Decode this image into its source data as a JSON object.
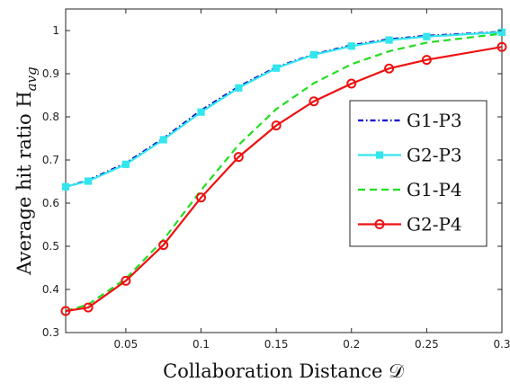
{
  "chart_data": {
    "type": "line",
    "xlabel": "Collaboration Distance 𝒟",
    "ylabel": "Average hit ratio H",
    "ylabel_sub": "avg",
    "xlim": [
      0.01,
      0.3
    ],
    "ylim": [
      0.3,
      1.05
    ],
    "xticks": [
      0.05,
      0.1,
      0.15,
      0.2,
      0.25,
      0.3
    ],
    "xtick_labels": [
      "0.05",
      "0.1",
      "0.15",
      "0.2",
      "0.25",
      "0.3"
    ],
    "yticks": [
      0.3,
      0.4,
      0.5,
      0.6,
      0.7,
      0.8,
      0.9,
      1.0
    ],
    "ytick_labels": [
      "0.3",
      "0.4",
      "0.5",
      "0.6",
      "0.7",
      "0.8",
      "0.9",
      "1"
    ],
    "grid": false,
    "legend_position": "center-right",
    "x": [
      0.01,
      0.025,
      0.05,
      0.075,
      0.1,
      0.125,
      0.15,
      0.175,
      0.2,
      0.225,
      0.25,
      0.3
    ],
    "series": [
      {
        "name": "G1-P3",
        "color": "#0000cc",
        "style": "dashdot",
        "marker": "none",
        "values": [
          0.638,
          0.653,
          0.693,
          0.75,
          0.815,
          0.87,
          0.915,
          0.945,
          0.966,
          0.98,
          0.988,
          0.997
        ]
      },
      {
        "name": "G2-P3",
        "color": "#33e6ee",
        "style": "solid",
        "marker": "square",
        "values": [
          0.638,
          0.651,
          0.69,
          0.747,
          0.811,
          0.867,
          0.913,
          0.944,
          0.964,
          0.978,
          0.986,
          0.996
        ]
      },
      {
        "name": "G1-P4",
        "color": "#22dd22",
        "style": "dashed",
        "marker": "none",
        "values": [
          0.35,
          0.365,
          0.425,
          0.515,
          0.63,
          0.735,
          0.818,
          0.878,
          0.922,
          0.952,
          0.972,
          0.993
        ]
      },
      {
        "name": "G2-P4",
        "color": "#ee1111",
        "style": "solid",
        "marker": "circle",
        "values": [
          0.35,
          0.358,
          0.42,
          0.503,
          0.613,
          0.707,
          0.78,
          0.836,
          0.877,
          0.912,
          0.932,
          0.962
        ]
      }
    ]
  }
}
